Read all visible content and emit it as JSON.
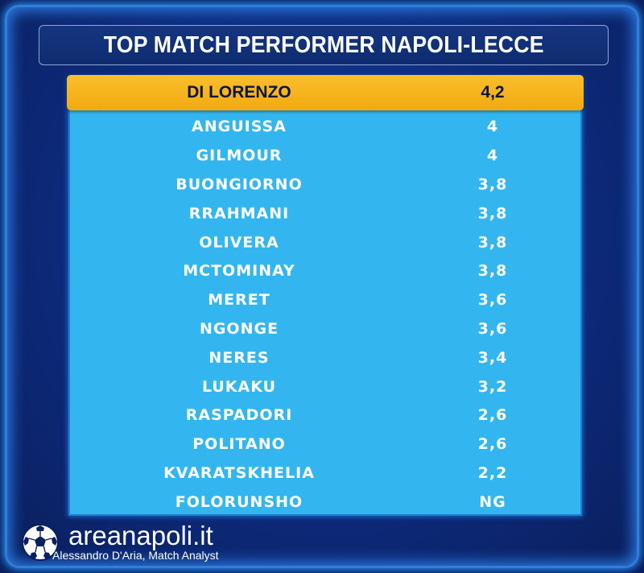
{
  "title": "TOP MATCH PERFORMER NAPOLI-LECCE",
  "top_player": {
    "name": "DI LORENZO",
    "score": "4,2"
  },
  "players": [
    {
      "name": "ANGUISSA",
      "score": "4"
    },
    {
      "name": "GILMOUR",
      "score": "4"
    },
    {
      "name": "BUONGIORNO",
      "score": "3,8"
    },
    {
      "name": "RRAHMANI",
      "score": "3,8"
    },
    {
      "name": "OLIVERA",
      "score": "3,8"
    },
    {
      "name": "MCTOMINAY",
      "score": "3,8"
    },
    {
      "name": "MERET",
      "score": "3,6"
    },
    {
      "name": "NGONGE",
      "score": "3,6"
    },
    {
      "name": "NERES",
      "score": "3,4"
    },
    {
      "name": "LUKAKU",
      "score": "3,2"
    },
    {
      "name": "RASPADORI",
      "score": "2,6"
    },
    {
      "name": "POLITANO",
      "score": "2,6"
    },
    {
      "name": "KVARATSKHELIA",
      "score": "2,2"
    },
    {
      "name": "FOLORUNSHO",
      "score": "NG"
    }
  ],
  "brand": {
    "name": "areanapoli.it",
    "credit": "Alessandro D'Aria, Match Analyst",
    "icon": "soccer-ball-icon"
  },
  "colors": {
    "background": "#0d2b7c",
    "table": "#33b6ef",
    "highlight": "#f6b51f",
    "frame_glow": "#2a8cf0"
  }
}
